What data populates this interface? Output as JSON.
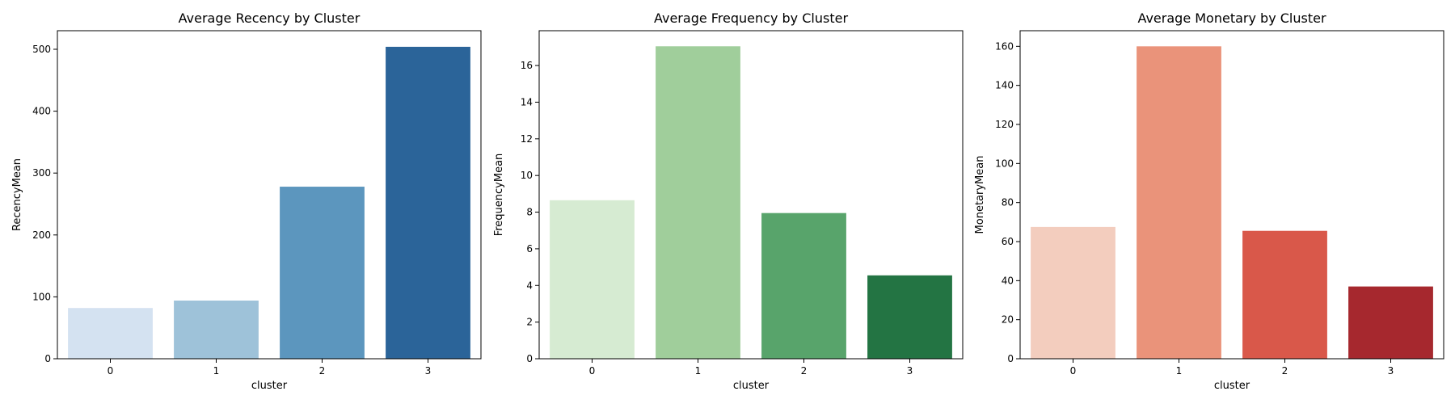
{
  "chart_data": [
    {
      "type": "bar",
      "title": "Average Recency by Cluster",
      "xlabel": "cluster",
      "ylabel": "RecencyMean",
      "categories": [
        "0",
        "1",
        "2",
        "3"
      ],
      "values": [
        82,
        94,
        278,
        504
      ],
      "ylim": [
        0,
        530
      ],
      "yticks": [
        0,
        100,
        200,
        300,
        400,
        500
      ],
      "colors": [
        "#d4e2f1",
        "#9ec2d9",
        "#5c96be",
        "#2b6499"
      ],
      "grid": false,
      "legend": "none"
    },
    {
      "type": "bar",
      "title": "Average Frequency by Cluster",
      "xlabel": "cluster",
      "ylabel": "FrequencyMean",
      "categories": [
        "0",
        "1",
        "2",
        "3"
      ],
      "values": [
        8.65,
        17.05,
        7.95,
        4.55
      ],
      "ylim": [
        0,
        17.9
      ],
      "yticks": [
        0,
        2,
        4,
        6,
        8,
        10,
        12,
        14,
        16
      ],
      "colors": [
        "#d6ebd2",
        "#a0ce9b",
        "#58a46b",
        "#237443"
      ],
      "grid": false,
      "legend": "none"
    },
    {
      "type": "bar",
      "title": "Average Monetary by Cluster",
      "xlabel": "cluster",
      "ylabel": "MonetaryMean",
      "categories": [
        "0",
        "1",
        "2",
        "3"
      ],
      "values": [
        67.5,
        160,
        65.5,
        37
      ],
      "ylim": [
        0,
        168
      ],
      "yticks": [
        0,
        20,
        40,
        60,
        80,
        100,
        120,
        140,
        160
      ],
      "colors": [
        "#f3cdbe",
        "#ea937a",
        "#d9584a",
        "#a6282e"
      ],
      "grid": false,
      "legend": "none"
    }
  ]
}
